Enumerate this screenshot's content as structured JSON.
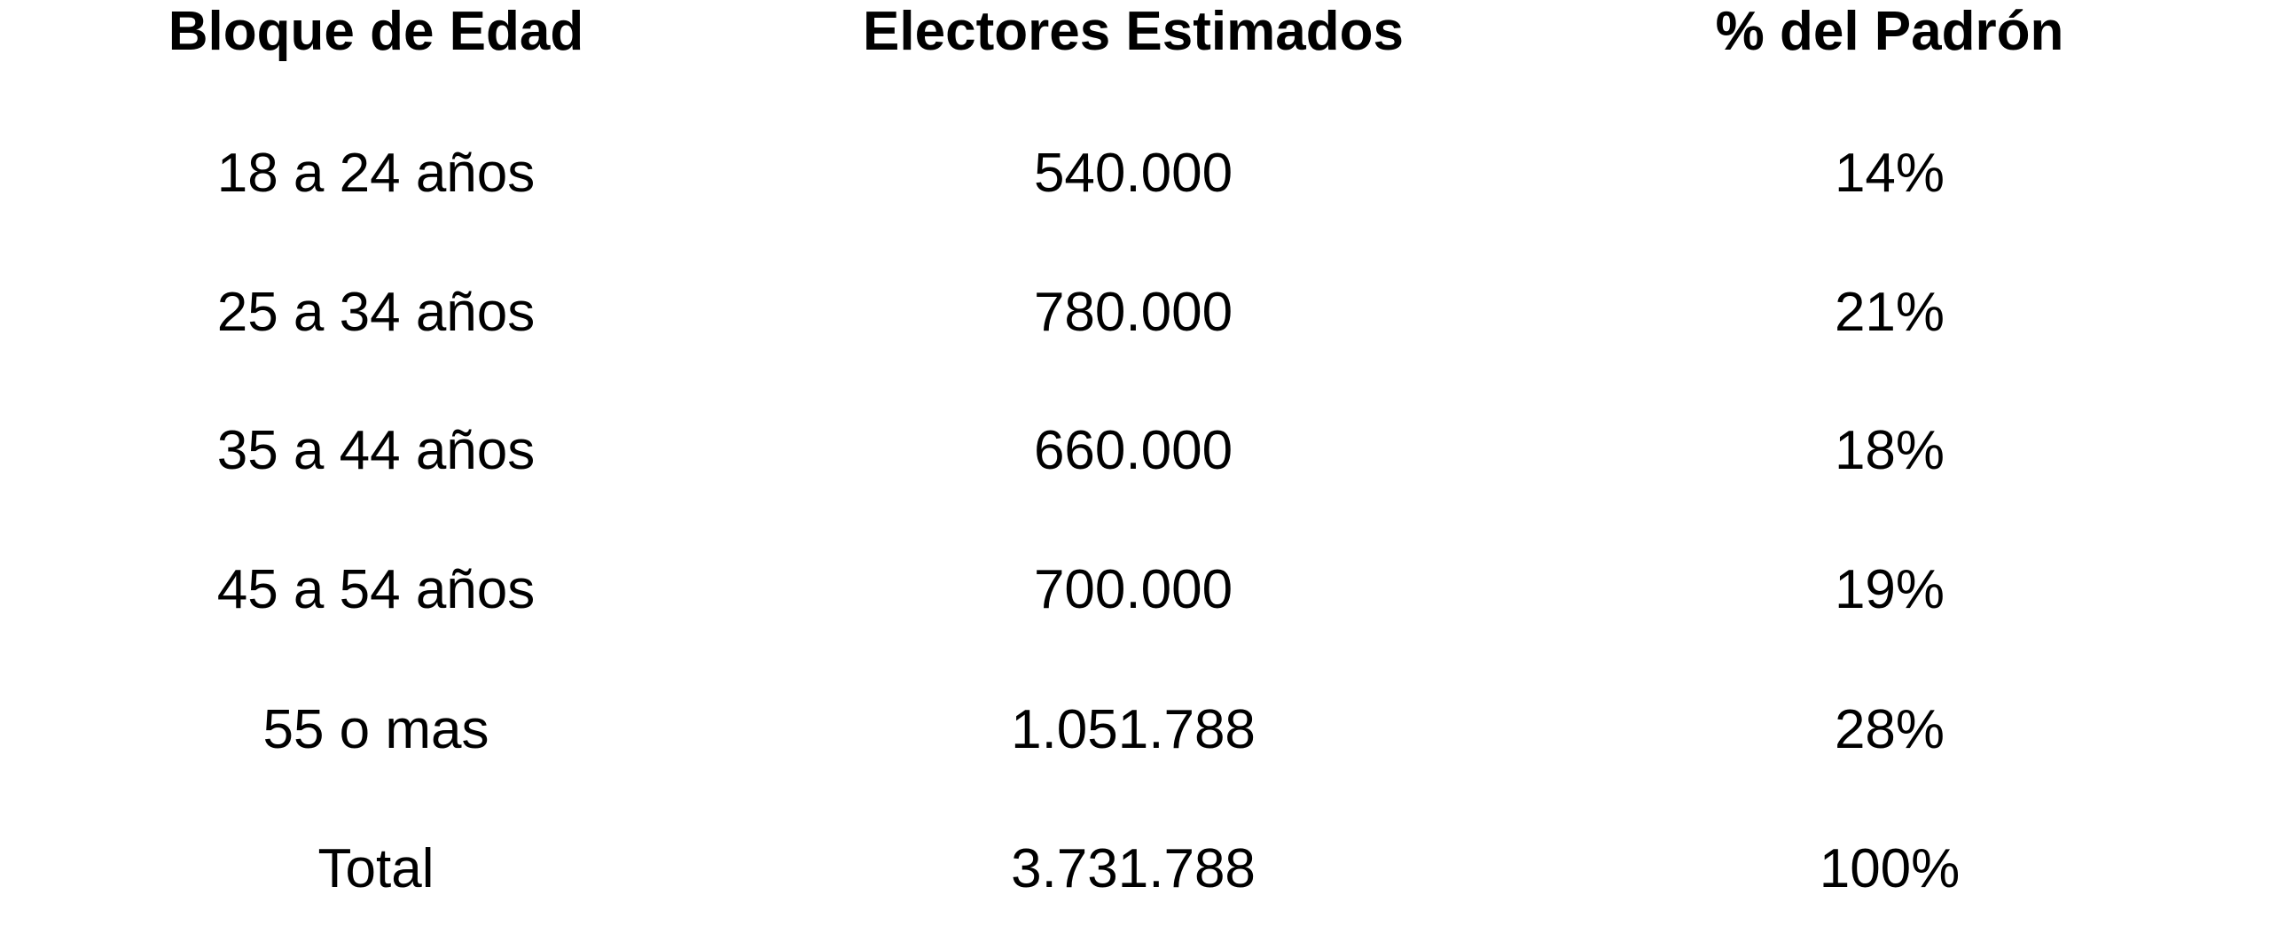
{
  "table": {
    "header": [
      "Bloque de Edad",
      "Electores Estimados",
      "% del Padrón"
    ],
    "rows": [
      [
        "18 a 24 años",
        "540.000",
        "14%"
      ],
      [
        "25 a 34 años",
        "780.000",
        "21%"
      ],
      [
        "35 a 44 años",
        "660.000",
        "18%"
      ],
      [
        "45 a 54 años",
        "700.000",
        "19%"
      ],
      [
        "55 o mas",
        "1.051.788",
        "28%"
      ],
      [
        "Total",
        "3.731.788",
        "100%"
      ]
    ]
  }
}
